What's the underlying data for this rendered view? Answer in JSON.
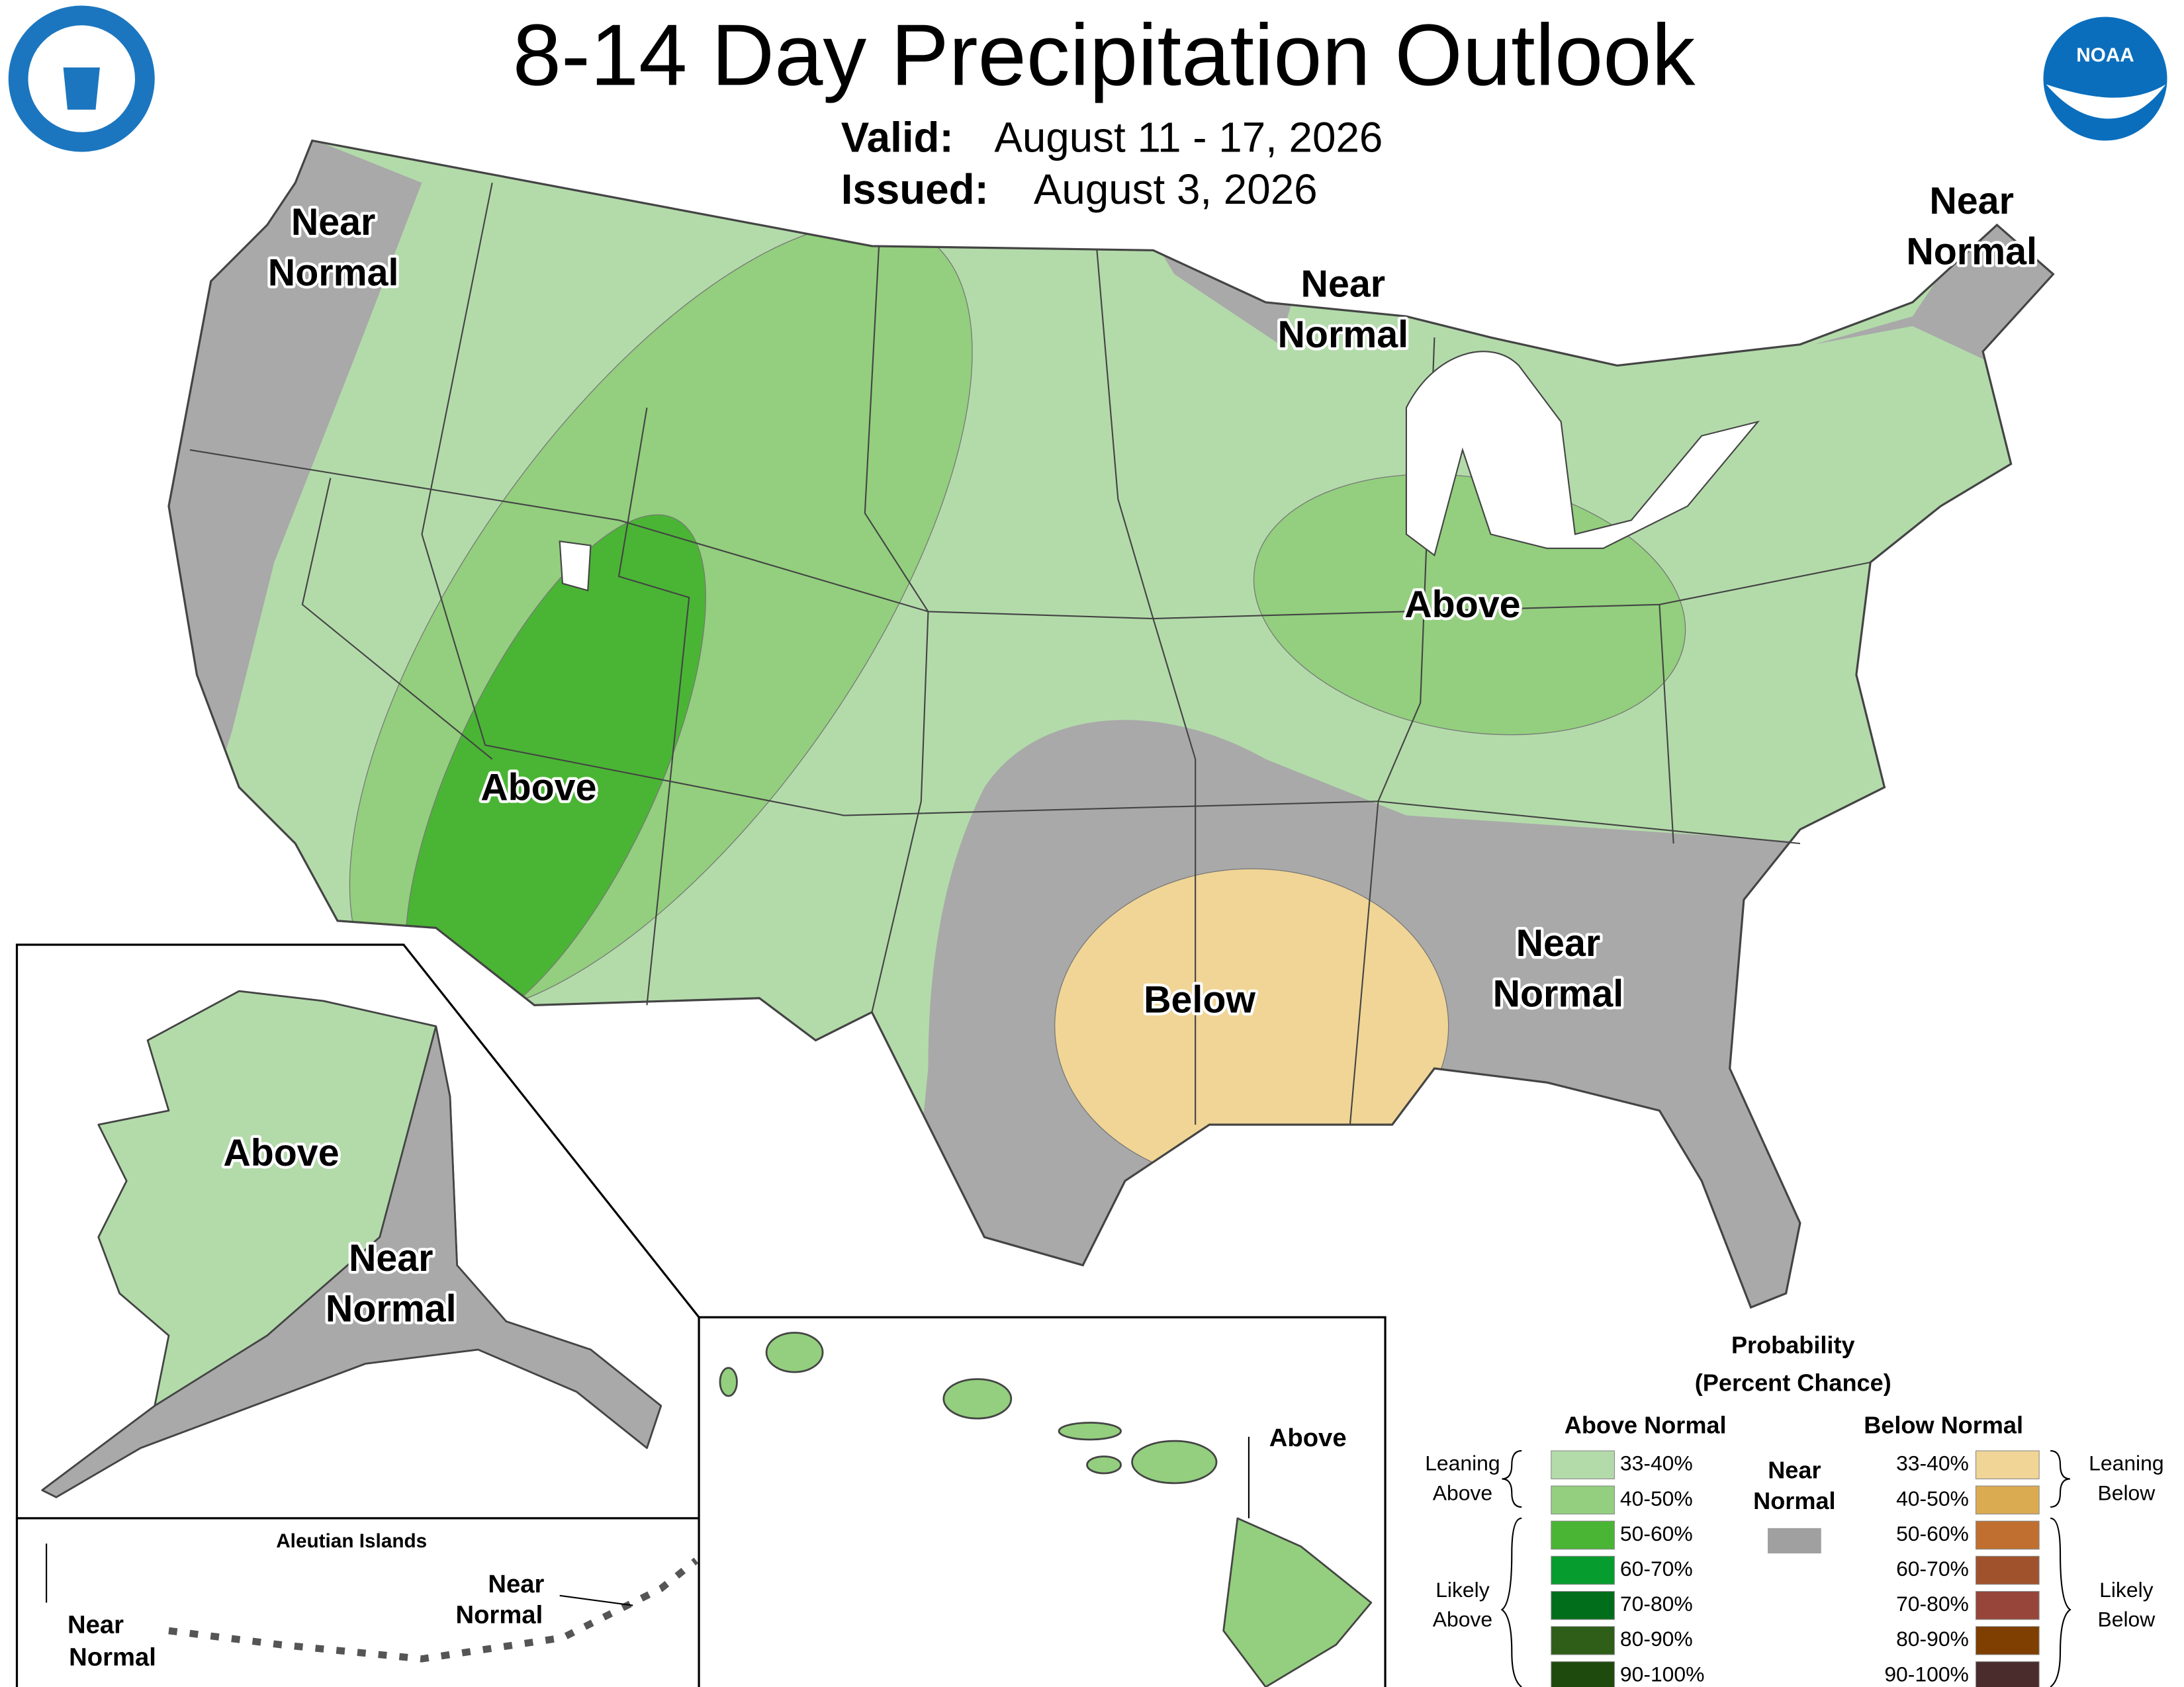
{
  "header": {
    "title": "8-14 Day Precipitation Outlook",
    "valid_label": "Valid:",
    "valid": "August 11 - 17, 2026",
    "issued_label": "Issued:",
    "issued": "August 3, 2026",
    "noaa_logo": "NOAA"
  },
  "map_labels": {
    "northwest": [
      "Near",
      "Normal"
    ],
    "northeast": [
      "Near",
      "Normal"
    ],
    "great_lakes": [
      "Near",
      "Normal"
    ],
    "southwest": "Above",
    "midwest": "Above",
    "south": "Below",
    "southeast": [
      "Near",
      "Normal"
    ],
    "alaska_above": "Above",
    "alaska_near": [
      "Near",
      "Normal"
    ],
    "aleutian_title": "Aleutian Islands",
    "aleutian_west": [
      "Near",
      "Normal"
    ],
    "aleutian_east": [
      "Near",
      "Normal"
    ],
    "hawaii": "Above"
  },
  "legend": {
    "title": [
      "Probability",
      "(Percent Chance)"
    ],
    "above_header": "Above Normal",
    "below_header": "Below Normal",
    "near": [
      "Near",
      "Normal"
    ],
    "near_color": "#a0a0a0",
    "leaning_above": [
      "Leaning",
      "Above"
    ],
    "likely_above": [
      "Likely",
      "Above"
    ],
    "leaning_below": [
      "Leaning",
      "Below"
    ],
    "likely_below": [
      "Likely",
      "Below"
    ],
    "above": [
      {
        "range": "33-40%",
        "color": "#b3dbaa"
      },
      {
        "range": "40-50%",
        "color": "#93cf7e"
      },
      {
        "range": "50-60%",
        "color": "#4ab534"
      },
      {
        "range": "60-70%",
        "color": "#079c2e"
      },
      {
        "range": "70-80%",
        "color": "#006e1a"
      },
      {
        "range": "80-90%",
        "color": "#2e5e18"
      },
      {
        "range": "90-100%",
        "color": "#1f4a0e"
      }
    ],
    "below": [
      {
        "range": "33-40%",
        "color": "#f0d596"
      },
      {
        "range": "40-50%",
        "color": "#dbab52"
      },
      {
        "range": "50-60%",
        "color": "#c06f30"
      },
      {
        "range": "60-70%",
        "color": "#a0522d"
      },
      {
        "range": "70-80%",
        "color": "#97453a"
      },
      {
        "range": "80-90%",
        "color": "#7e3f00"
      },
      {
        "range": "90-100%",
        "color": "#4a2c2c"
      }
    ]
  }
}
